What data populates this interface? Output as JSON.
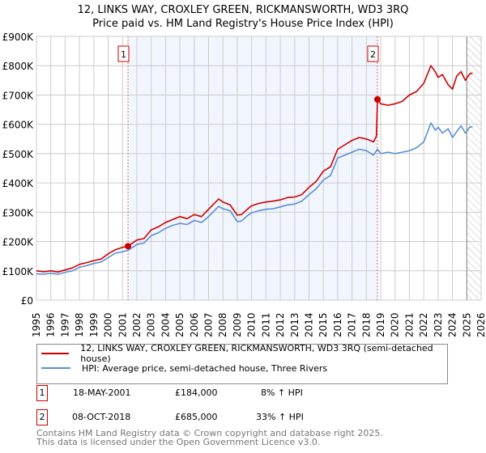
{
  "title": "12, LINKS WAY, CROXLEY GREEN, RICKMANSWORTH, WD3 3RQ",
  "subtitle": "Price paid vs. HM Land Registry's House Price Index (HPI)",
  "chart_data": {
    "type": "line",
    "xlim": [
      1995,
      2026
    ],
    "ylim": [
      0,
      900000
    ],
    "y_ticks": [
      0,
      100000,
      200000,
      300000,
      400000,
      500000,
      600000,
      700000,
      800000,
      900000
    ],
    "y_tick_labels": [
      "£0",
      "£100K",
      "£200K",
      "£300K",
      "£400K",
      "£500K",
      "£600K",
      "£700K",
      "£800K",
      "£900K"
    ],
    "x_ticks": [
      "1995",
      "1996",
      "1997",
      "1998",
      "1999",
      "2000",
      "2001",
      "2002",
      "2003",
      "2004",
      "2005",
      "2006",
      "2007",
      "2008",
      "2009",
      "2010",
      "2011",
      "2012",
      "2013",
      "2014",
      "2015",
      "2016",
      "2017",
      "2018",
      "2019",
      "2020",
      "2021",
      "2022",
      "2023",
      "2024",
      "2025",
      "2026"
    ],
    "grid": true,
    "shaded_period": [
      2001.38,
      2018.77
    ],
    "forecast_hatch_from": 2025.0,
    "series": [
      {
        "name": "12, LINKS WAY, CROXLEY GREEN, RICKMANSWORTH, WD3 3RQ (semi-detached house)",
        "color": "#cc0000",
        "x": [
          1995,
          1995.5,
          1996,
          1996.5,
          1997,
          1997.5,
          1998,
          1998.5,
          1999,
          1999.5,
          2000,
          2000.5,
          2001,
          2001.38,
          2002,
          2002.5,
          2003,
          2003.5,
          2004,
          2004.5,
          2005,
          2005.5,
          2006,
          2006.5,
          2007,
          2007.7,
          2008,
          2008.5,
          2009,
          2009.3,
          2009.7,
          2010,
          2010.5,
          2011,
          2011.5,
          2012,
          2012.5,
          2013,
          2013.5,
          2014,
          2014.5,
          2015,
          2015.5,
          2016,
          2016.5,
          2017,
          2017.5,
          2018,
          2018.5,
          2018.7,
          2018.77,
          2019,
          2019.5,
          2020,
          2020.5,
          2021,
          2021.5,
          2022,
          2022.5,
          2022.8,
          2023,
          2023.3,
          2023.7,
          2024,
          2024.3,
          2024.6,
          2024.9,
          2025.2,
          2025.4
        ],
        "y": [
          100000,
          97000,
          100000,
          96000,
          103000,
          110000,
          122000,
          128000,
          135000,
          140000,
          158000,
          172000,
          180000,
          184000,
          205000,
          210000,
          240000,
          250000,
          265000,
          275000,
          285000,
          278000,
          292000,
          285000,
          310000,
          345000,
          335000,
          325000,
          290000,
          292000,
          310000,
          322000,
          330000,
          335000,
          338000,
          342000,
          350000,
          352000,
          360000,
          385000,
          405000,
          440000,
          455000,
          515000,
          530000,
          545000,
          555000,
          550000,
          540000,
          560000,
          685000,
          670000,
          665000,
          670000,
          678000,
          700000,
          712000,
          740000,
          800000,
          780000,
          760000,
          770000,
          735000,
          720000,
          765000,
          780000,
          750000,
          772000,
          775000
        ]
      },
      {
        "name": "HPI: Average price, semi-detached house, Three Rivers",
        "color": "#5b8fd4",
        "x": [
          1995,
          1995.5,
          1996,
          1996.5,
          1997,
          1997.5,
          1998,
          1998.5,
          1999,
          1999.5,
          2000,
          2000.5,
          2001,
          2001.38,
          2002,
          2002.5,
          2003,
          2003.5,
          2004,
          2004.5,
          2005,
          2005.5,
          2006,
          2006.5,
          2007,
          2007.7,
          2008,
          2008.5,
          2009,
          2009.3,
          2009.7,
          2010,
          2010.5,
          2011,
          2011.5,
          2012,
          2012.5,
          2013,
          2013.5,
          2014,
          2014.5,
          2015,
          2015.5,
          2016,
          2016.5,
          2017,
          2017.5,
          2018,
          2018.5,
          2018.77,
          2019,
          2019.5,
          2020,
          2020.5,
          2021,
          2021.5,
          2022,
          2022.5,
          2022.8,
          2023,
          2023.3,
          2023.7,
          2024,
          2024.3,
          2024.6,
          2024.9,
          2025.2,
          2025.4
        ],
        "y": [
          90000,
          88000,
          92000,
          88000,
          95000,
          100000,
          112000,
          118000,
          125000,
          130000,
          145000,
          160000,
          165000,
          170000,
          190000,
          195000,
          220000,
          230000,
          245000,
          255000,
          262000,
          258000,
          272000,
          265000,
          285000,
          320000,
          312000,
          305000,
          268000,
          270000,
          288000,
          298000,
          305000,
          310000,
          312000,
          318000,
          325000,
          328000,
          338000,
          360000,
          380000,
          410000,
          425000,
          485000,
          495000,
          505000,
          515000,
          510000,
          495000,
          515000,
          500000,
          505000,
          500000,
          505000,
          510000,
          520000,
          540000,
          605000,
          580000,
          590000,
          570000,
          585000,
          555000,
          575000,
          595000,
          570000,
          590000,
          592000
        ]
      }
    ],
    "sales": [
      {
        "label": "1",
        "x": 2001.38,
        "y": 184000
      },
      {
        "label": "2",
        "x": 2018.77,
        "y": 685000
      }
    ]
  },
  "table": [
    {
      "num": "1",
      "date": "18-MAY-2001",
      "price": "£184,000",
      "hpi": "8% ↑ HPI"
    },
    {
      "num": "2",
      "date": "08-OCT-2018",
      "price": "£685,000",
      "hpi": "33% ↑ HPI"
    }
  ],
  "footer": [
    "Contains HM Land Registry data © Crown copyright and database right 2025.",
    "This data is licensed under the Open Government Licence v3.0."
  ]
}
